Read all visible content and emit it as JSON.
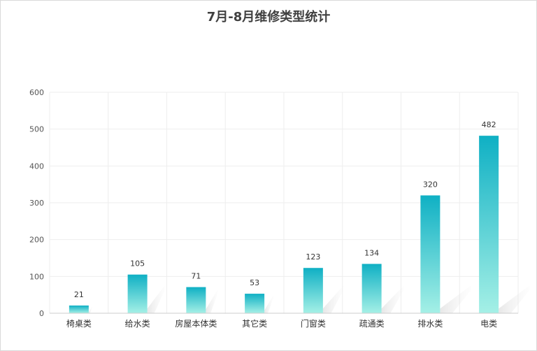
{
  "chart_data": {
    "type": "bar",
    "title": "7月-8月维修类型统计",
    "categories": [
      "椅桌类",
      "给水类",
      "房屋本体类",
      "其它类",
      "门窗类",
      "疏通类",
      "排水类",
      "电类"
    ],
    "values": [
      21,
      105,
      71,
      53,
      123,
      134,
      320,
      482
    ],
    "yticks": [
      0,
      100,
      200,
      300,
      400,
      500,
      600
    ],
    "ylim": [
      0,
      600
    ],
    "xlabel": "",
    "ylabel": "",
    "grid": true,
    "colors": {
      "bar_top": "#0fb0c4",
      "bar_bottom": "#a5f0e6",
      "grid": "#eeeeee",
      "axis": "#cccccc"
    }
  }
}
